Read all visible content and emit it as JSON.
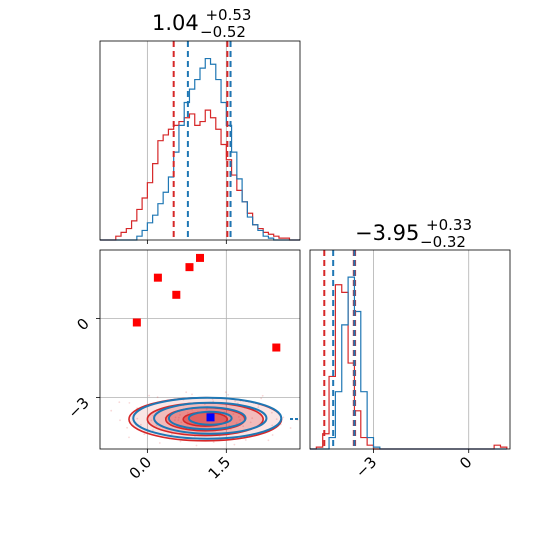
{
  "chart_data": {
    "type": "corner",
    "colors": {
      "blue": "#1f77b4",
      "red": "#d62728",
      "marker_red": "#ff0000",
      "marker_blue": "#0000ff",
      "grid": "#b0b0b0"
    },
    "params": [
      {
        "title_value": "1.04",
        "title_plus": "+0.53",
        "title_minus": "−0.52"
      },
      {
        "title_value": "−3.95",
        "title_plus": "+0.33",
        "title_minus": "−0.32"
      }
    ],
    "x_ranges": [
      [
        -0.9,
        2.9
      ],
      [
        -5.0,
        1.3
      ]
    ],
    "y_range": [
      -4.95,
      2.6
    ],
    "grid": true,
    "panel_00": {
      "x_ticks": [
        0.0,
        1.5
      ],
      "blue_quantiles": [
        0.77,
        1.58
      ],
      "red_quantiles": [
        0.5,
        1.52,
        1.58
      ],
      "bins": [
        -0.9,
        -0.8,
        -0.7,
        -0.6,
        -0.5,
        -0.4,
        -0.3,
        -0.2,
        -0.1,
        0.0,
        0.1,
        0.2,
        0.3,
        0.4,
        0.5,
        0.6,
        0.7,
        0.8,
        0.9,
        1.0,
        1.1,
        1.2,
        1.3,
        1.4,
        1.5,
        1.6,
        1.7,
        1.8,
        1.9,
        2.0,
        2.1,
        2.2,
        2.3,
        2.4,
        2.5,
        2.6,
        2.7,
        2.8,
        2.9
      ],
      "blue_hist": [
        0,
        0,
        0,
        0,
        0,
        0,
        0,
        0.02,
        0.05,
        0.09,
        0.13,
        0.19,
        0.25,
        0.33,
        0.46,
        0.6,
        0.72,
        0.79,
        0.84,
        0.9,
        0.95,
        0.92,
        0.84,
        0.72,
        0.6,
        0.46,
        0.32,
        0.2,
        0.12,
        0.08,
        0.05,
        0.02,
        0.01,
        0,
        0,
        0,
        0,
        0
      ],
      "red_hist": [
        0,
        0,
        0,
        0.02,
        0.04,
        0.06,
        0.1,
        0.16,
        0.22,
        0.3,
        0.4,
        0.52,
        0.55,
        0.58,
        0.6,
        0.62,
        0.64,
        0.66,
        0.6,
        0.62,
        0.68,
        0.64,
        0.58,
        0.5,
        0.42,
        0.34,
        0.26,
        0.2,
        0.14,
        0.08,
        0.06,
        0.04,
        0.03,
        0.02,
        0.01,
        0.01,
        0,
        0
      ]
    },
    "panel_11": {
      "x_ticks": [
        -3,
        0
      ],
      "blue_quantiles": [
        -4.27,
        -3.6
      ],
      "red_quantiles": [
        -4.55,
        -3.62,
        -3.58
      ],
      "bins": [
        -5.0,
        -4.8,
        -4.6,
        -4.4,
        -4.2,
        -4.0,
        -3.8,
        -3.6,
        -3.4,
        -3.2,
        -3.0,
        -2.8,
        -2.6,
        -2.4,
        -2.2,
        -2.0,
        -1.8,
        -1.6,
        -1.4,
        -1.2,
        -1.0,
        -0.8,
        -0.6,
        -0.4,
        -0.2,
        0.0,
        0.2,
        0.4,
        0.6,
        0.8,
        1.0,
        1.2
      ],
      "blue_hist": [
        0,
        0,
        0,
        0.06,
        0.3,
        0.65,
        0.9,
        0.72,
        0.3,
        0.06,
        0.01,
        0,
        0,
        0,
        0,
        0,
        0,
        0,
        0,
        0,
        0,
        0,
        0,
        0,
        0,
        0,
        0,
        0,
        0,
        0,
        0
      ],
      "red_hist": [
        0,
        0.01,
        0.08,
        0.38,
        0.86,
        0.82,
        0.45,
        0.2,
        0.06,
        0.02,
        0,
        0,
        0,
        0,
        0,
        0,
        0,
        0,
        0,
        0,
        0,
        0,
        0,
        0,
        0,
        0,
        0,
        0,
        0,
        0.02,
        0.01
      ]
    },
    "panel_10": {
      "x_ticks": [
        0.0,
        1.5
      ],
      "y_ticks": [
        0,
        -3
      ],
      "red_markers": [
        {
          "x": -0.2,
          "y": -0.15
        },
        {
          "x": 0.2,
          "y": 1.55
        },
        {
          "x": 0.55,
          "y": 0.9
        },
        {
          "x": 0.8,
          "y": 1.95
        },
        {
          "x": 1.0,
          "y": 2.3
        },
        {
          "x": 2.45,
          "y": -1.1
        }
      ],
      "blue_marker": {
        "x": 1.2,
        "y": -3.75
      },
      "contour_center": {
        "x": 1.1,
        "y": -3.82
      },
      "contour_levels": [
        {
          "rx": 1.45,
          "ry": 0.82
        },
        {
          "rx": 1.1,
          "ry": 0.62
        },
        {
          "rx": 0.75,
          "ry": 0.44
        },
        {
          "rx": 0.42,
          "ry": 0.26
        }
      ]
    }
  }
}
